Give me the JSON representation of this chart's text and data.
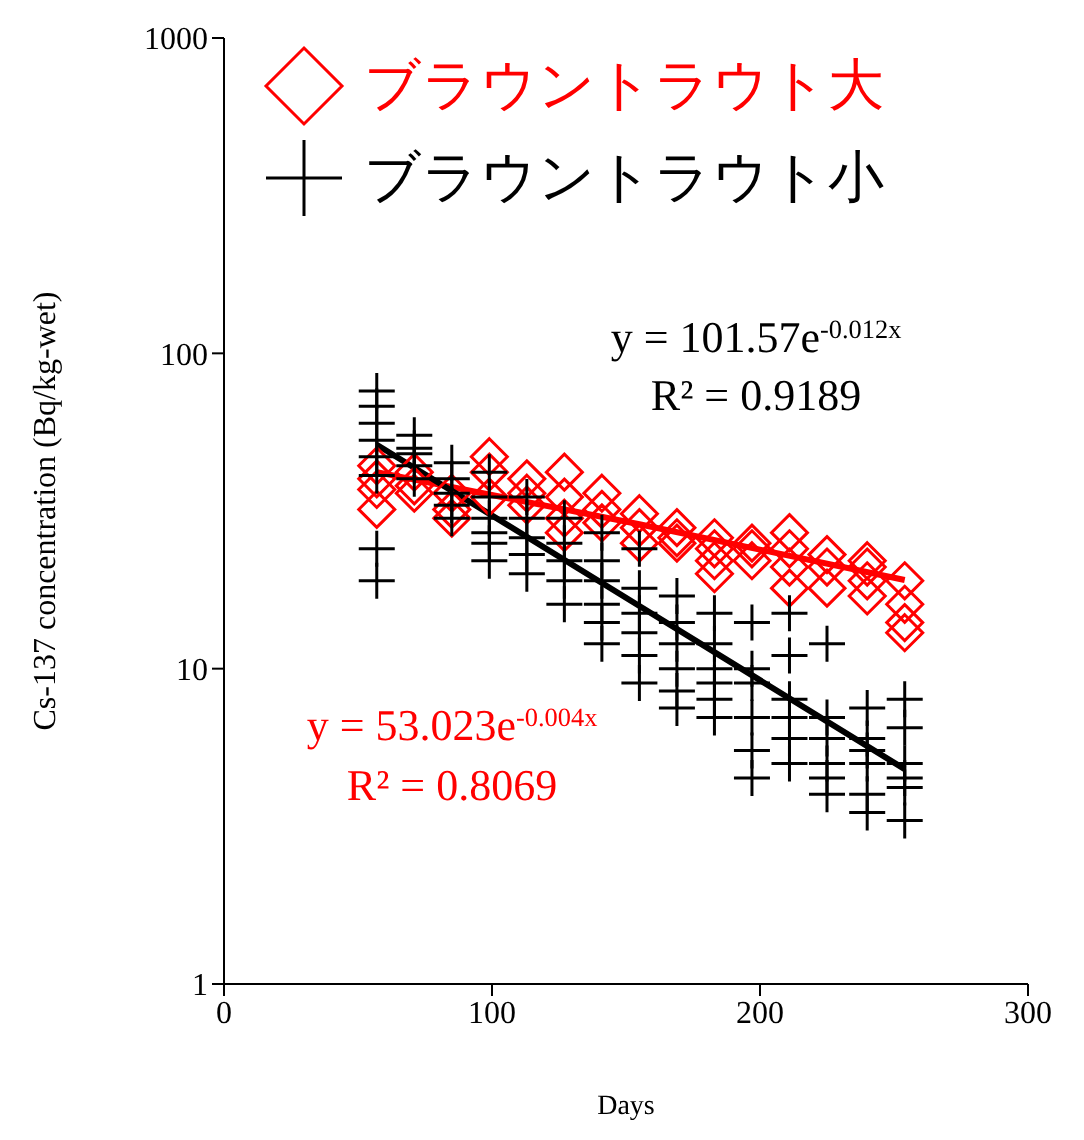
{
  "chart_data": {
    "type": "scatter",
    "xlabel": "Days",
    "ylabel": "Cs-137 concentration (Bq/kg-wet)",
    "log": "y",
    "xlim": [
      0,
      300
    ],
    "xticks": [
      0,
      100,
      200,
      300
    ],
    "ylim": [
      1,
      1000
    ],
    "yticks": [
      1,
      10,
      100,
      1000
    ],
    "grid": false,
    "legend": "top left",
    "series": [
      {
        "name": "ブラウントラウト大",
        "marker": "diamond",
        "color": "#ff0000",
        "x": [
          57,
          57,
          57,
          57,
          71,
          71,
          71,
          85,
          85,
          85,
          99,
          99,
          99,
          113,
          113,
          113,
          127,
          127,
          127,
          127,
          141,
          141,
          141,
          155,
          155,
          155,
          169,
          169,
          169,
          183,
          183,
          183,
          183,
          197,
          197,
          197,
          211,
          211,
          211,
          211,
          225,
          225,
          225,
          240,
          240,
          240,
          240,
          254,
          254,
          254,
          254
        ],
        "values": [
          44,
          40,
          37,
          32,
          42,
          38,
          36,
          36,
          32,
          30,
          47,
          42,
          35,
          40,
          36,
          33,
          42,
          35,
          30,
          27,
          36,
          32,
          29,
          31,
          28,
          25,
          28,
          26,
          25,
          26,
          24,
          22,
          20,
          25,
          24,
          22,
          27,
          24,
          21,
          18,
          23,
          21,
          18,
          22,
          21,
          19,
          17,
          19,
          16,
          14,
          13
        ]
      },
      {
        "name": "ブラウントラウト小",
        "marker": "cross",
        "color": "#000000",
        "x": [
          57,
          57,
          57,
          57,
          57,
          57,
          57,
          57,
          71,
          71,
          71,
          71,
          71,
          85,
          85,
          85,
          85,
          85,
          99,
          99,
          99,
          99,
          99,
          99,
          113,
          113,
          113,
          113,
          113,
          127,
          127,
          127,
          127,
          127,
          141,
          141,
          141,
          141,
          141,
          141,
          155,
          155,
          155,
          155,
          155,
          155,
          169,
          169,
          169,
          169,
          169,
          169,
          183,
          183,
          183,
          183,
          183,
          183,
          197,
          197,
          197,
          197,
          197,
          197,
          211,
          211,
          211,
          211,
          211,
          211,
          225,
          225,
          225,
          225,
          225,
          225,
          240,
          240,
          240,
          240,
          240,
          240,
          254,
          254,
          254,
          254,
          254,
          254
        ],
        "values": [
          76,
          68,
          60,
          53,
          47,
          41,
          24,
          19,
          55,
          50,
          48,
          44,
          40,
          45,
          40,
          36,
          33,
          30,
          42,
          35,
          30,
          27,
          25,
          22,
          35,
          30,
          26,
          23,
          20,
          30,
          25,
          22,
          19,
          16,
          27,
          22,
          19,
          16,
          14,
          12,
          24,
          18,
          15,
          13,
          11,
          9,
          17,
          14,
          12,
          10,
          8.5,
          7.5,
          15,
          12,
          10,
          9,
          8,
          7,
          14,
          10,
          9,
          7,
          5.5,
          4.5,
          15,
          11,
          8,
          7,
          6,
          5,
          12,
          7,
          6,
          5,
          4.5,
          4,
          7.5,
          6,
          5.5,
          5,
          4,
          3.5,
          8,
          6.5,
          5,
          4.5,
          4.2,
          3.3
        ]
      },
      {
        "type": "line",
        "color": "#ff0000",
        "x": [
          57,
          155,
          254
        ],
        "values": [
          42,
          28.7,
          19.1
        ]
      },
      {
        "type": "line",
        "color": "#000000",
        "x": [
          57,
          155,
          254
        ],
        "values": [
          51.3,
          15.8,
          4.8
        ]
      }
    ],
    "annotations": [
      "y = 101.57e$^{-0.012x}$",
      "R² = 0.9189",
      "y = 53.023e$^{-0.004x}$",
      "R² = 0.8069"
    ]
  }
}
